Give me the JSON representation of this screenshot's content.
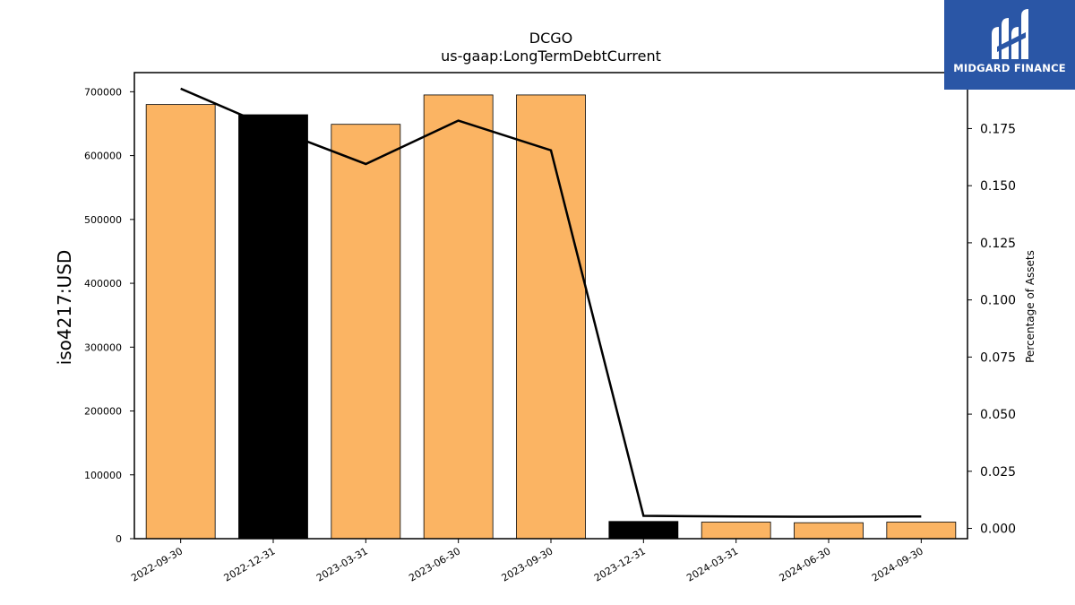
{
  "chart_data": {
    "type": "bar",
    "title": "DCGO",
    "subtitle": "us-gaap:LongTermDebtCurrent",
    "ylabel": "iso4217:USD",
    "y2label": "Percentage of Assets",
    "categories": [
      "2022-09-30",
      "2022-12-31",
      "2023-03-31",
      "2023-06-30",
      "2023-09-30",
      "2023-12-31",
      "2024-03-31",
      "2024-06-30",
      "2024-09-30"
    ],
    "values": [
      680000,
      664000,
      649000,
      695000,
      695000,
      27000,
      26000,
      25000,
      26000
    ],
    "bar_colors": [
      "#fbb463",
      "#000000",
      "#fbb463",
      "#fbb463",
      "#fbb463",
      "#000000",
      "#fbb463",
      "#fbb463",
      "#fbb463"
    ],
    "series": [
      {
        "axis": "right",
        "color": "#000000",
        "values": [
          0.1925,
          0.175,
          0.1595,
          0.1785,
          0.1655,
          0.0055,
          0.0052,
          0.0051,
          0.0052
        ]
      }
    ],
    "ylim": [
      0,
      730000
    ],
    "y2lim": [
      -0.0045,
      0.1995
    ],
    "yticks": [
      0,
      100000,
      200000,
      300000,
      400000,
      500000,
      600000,
      700000
    ],
    "y2ticks": [
      "0.000",
      "0.025",
      "0.050",
      "0.075",
      "0.100",
      "0.125",
      "0.150",
      "0.175"
    ],
    "grid": false
  },
  "logo": {
    "text": "MIDGARD FINANCE"
  },
  "colors": {
    "bar": "#fbb463",
    "highlight": "#000000",
    "logo_bg": "#2a56a6"
  }
}
